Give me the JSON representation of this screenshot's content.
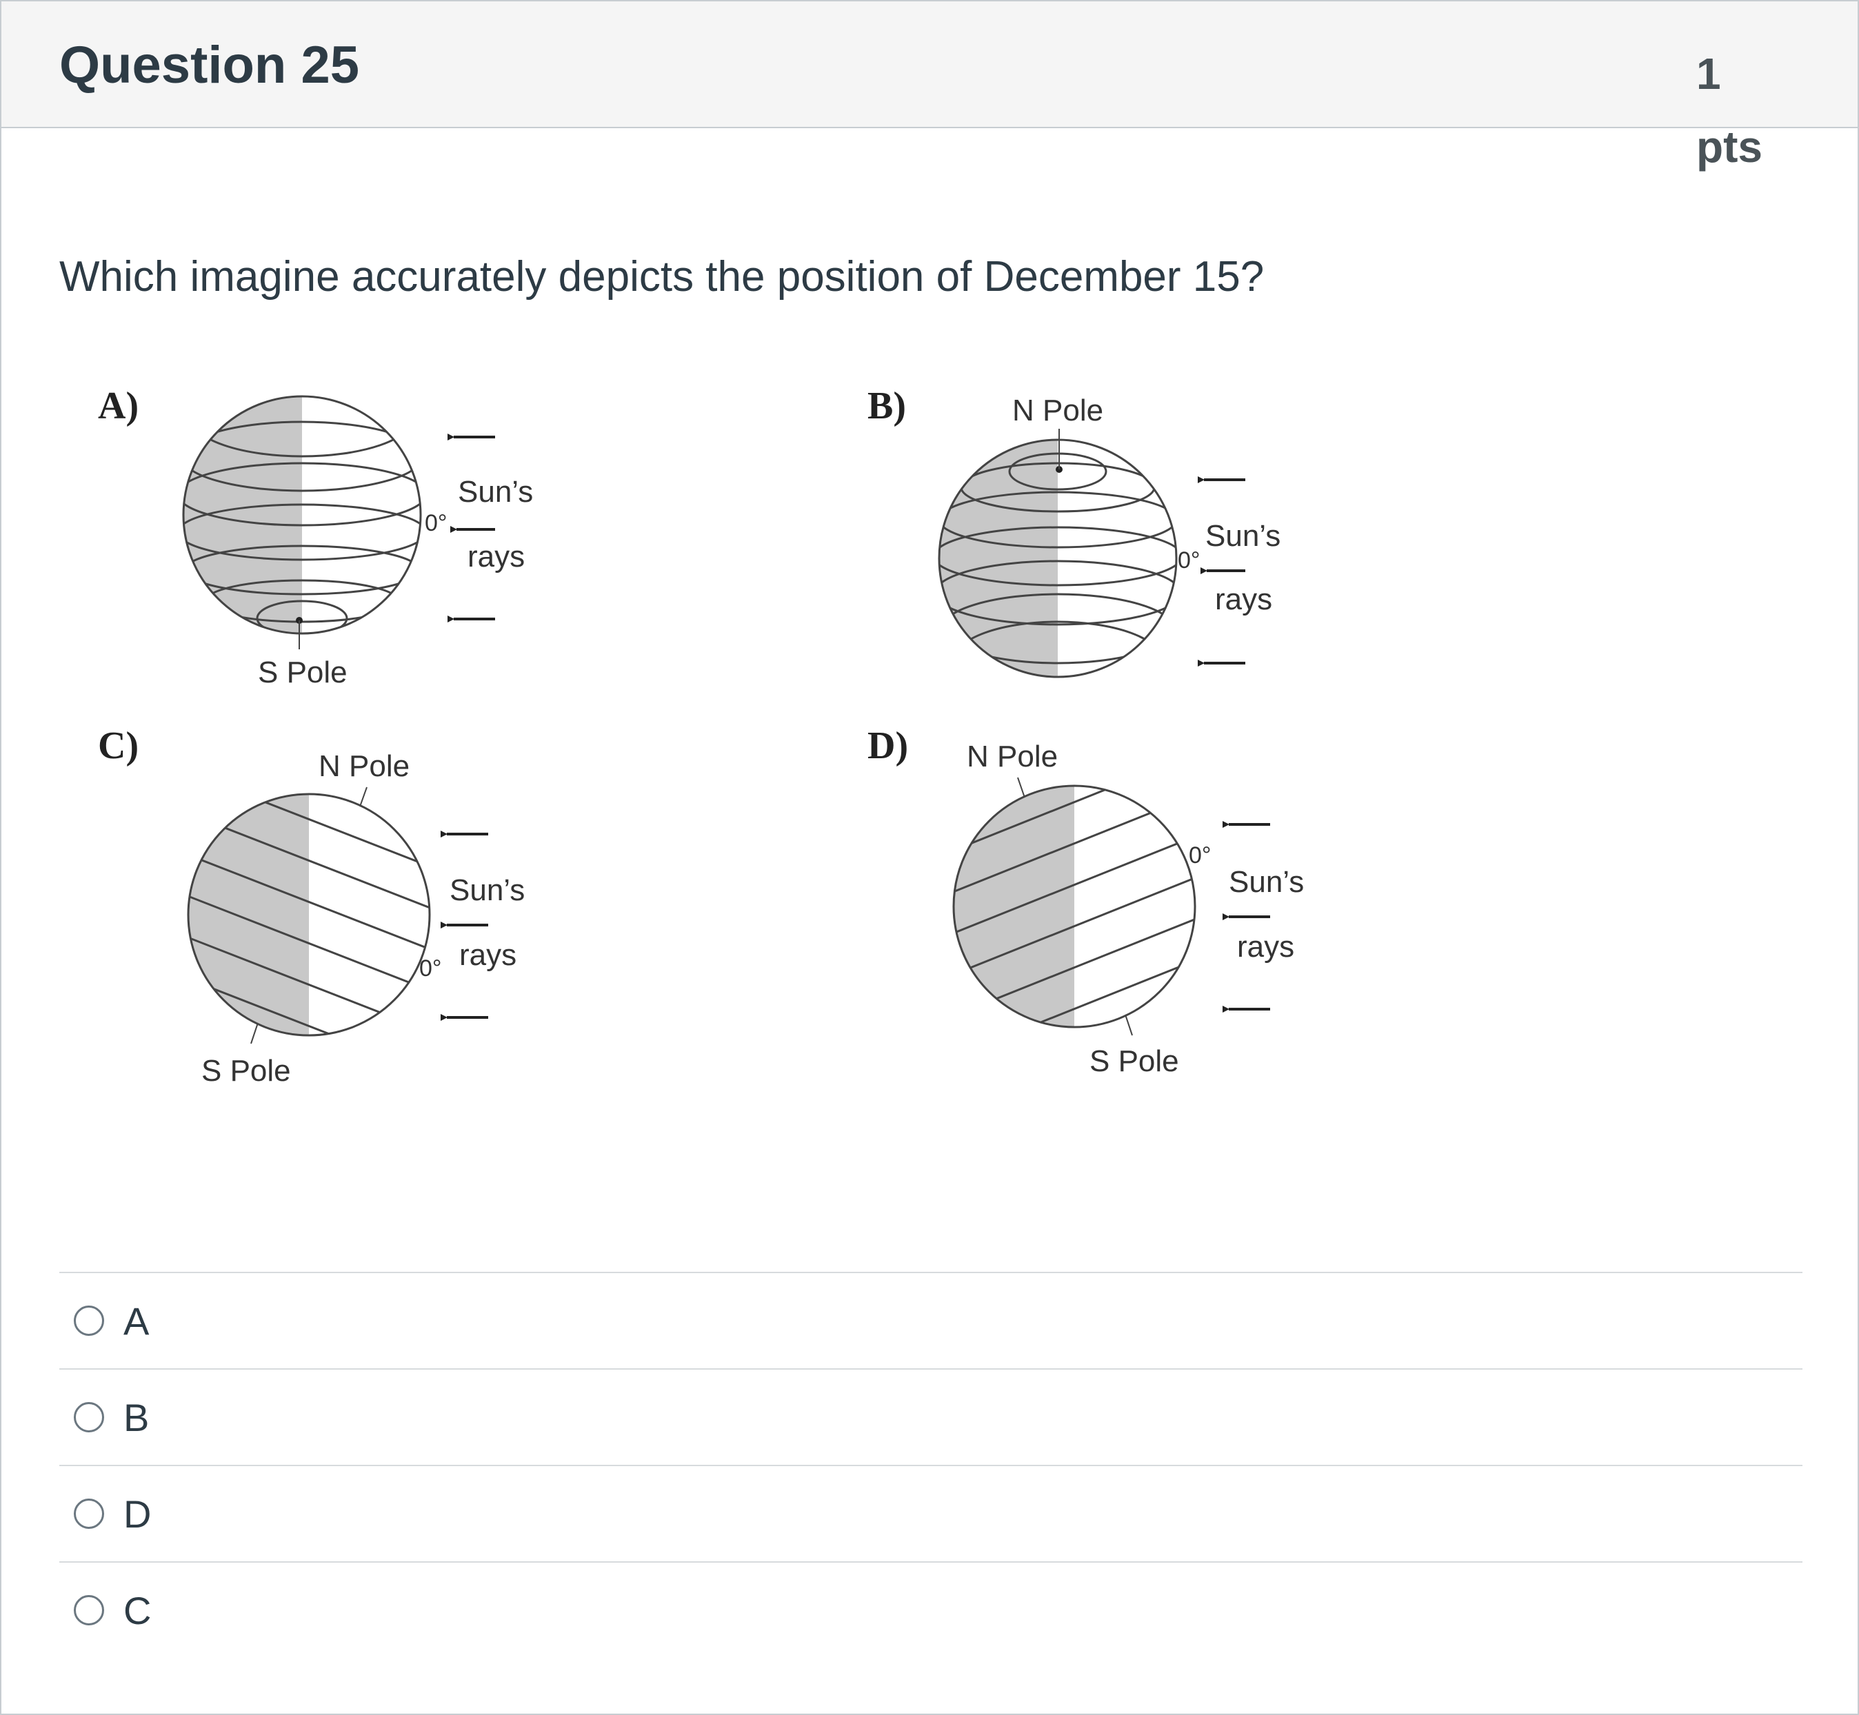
{
  "question": {
    "title": "Question 25",
    "points_value": "1",
    "points_unit": "pts",
    "text": "Which imagine accurately depicts the position of December 15?"
  },
  "figure": {
    "options": [
      {
        "letter": "A)",
        "pole_top": "",
        "pole_bottom": "S Pole",
        "equator": "0°",
        "sun_label_1": "Sun’s",
        "sun_label_2": "rays"
      },
      {
        "letter": "B)",
        "pole_top": "N Pole",
        "pole_bottom": "",
        "equator": "0°",
        "sun_label_1": "Sun’s",
        "sun_label_2": "rays"
      },
      {
        "letter": "C)",
        "pole_top": "N Pole",
        "pole_bottom": "S Pole",
        "equator": "0°",
        "sun_label_1": "Sun’s",
        "sun_label_2": "rays"
      },
      {
        "letter": "D)",
        "pole_top": "N Pole",
        "pole_bottom": "S Pole",
        "equator": "0°",
        "sun_label_1": "Sun’s",
        "sun_label_2": "rays"
      }
    ]
  },
  "answers": [
    {
      "label": "A"
    },
    {
      "label": "B"
    },
    {
      "label": "D"
    },
    {
      "label": "C"
    }
  ]
}
